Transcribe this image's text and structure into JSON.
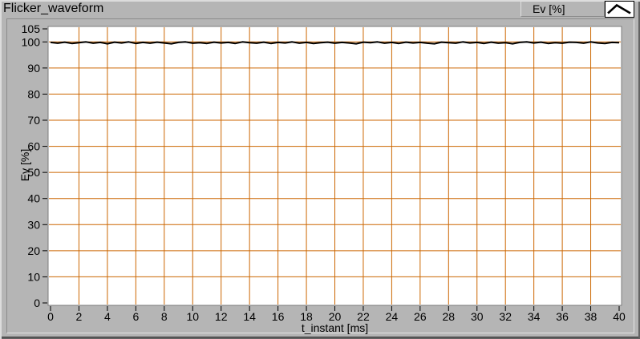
{
  "header": {
    "title": "Flicker_waveform"
  },
  "legend": {
    "label": "Ev [%]"
  },
  "colors": {
    "window_bg": "#b5b5b5",
    "plot_bg": "#ffffff",
    "grid": "#cc6600",
    "line": "#000000",
    "text": "#000000"
  },
  "chart_data": {
    "type": "line",
    "title": "Flicker_waveform",
    "xlabel": "t_instant [ms]",
    "ylabel": "Ev [%]",
    "xlim": [
      0,
      40
    ],
    "ylim": [
      0,
      105
    ],
    "x_ticks": [
      0,
      2,
      4,
      6,
      8,
      10,
      12,
      14,
      16,
      18,
      20,
      22,
      24,
      26,
      28,
      30,
      32,
      34,
      36,
      38,
      40
    ],
    "y_ticks": [
      0,
      10,
      20,
      30,
      40,
      50,
      60,
      70,
      80,
      90,
      100,
      105
    ],
    "grid": true,
    "grid_color": "#cc6600",
    "plot_bg": "#ffffff",
    "legend_position": "top-right",
    "legend_entries": [
      {
        "label": "Ev [%]",
        "line_color": "#000000"
      }
    ],
    "series": [
      {
        "name": "Ev [%]",
        "color": "#000000",
        "x_start": 0,
        "x_step": 0.5,
        "values": [
          99.8,
          99.5,
          99.9,
          99.4,
          99.7,
          100.0,
          99.5,
          99.8,
          99.3,
          99.9,
          99.6,
          100.0,
          99.4,
          99.8,
          99.5,
          99.9,
          99.6,
          99.3,
          99.8,
          100.0,
          99.5,
          99.7,
          99.4,
          99.9,
          99.6,
          99.8,
          99.4,
          100.0,
          99.7,
          99.5,
          99.9,
          99.4,
          99.8,
          99.6,
          100.0,
          99.5,
          99.8,
          99.4,
          99.7,
          99.9,
          99.5,
          99.8,
          99.6,
          99.3,
          99.9,
          99.7,
          100.0,
          99.5,
          99.8,
          99.4,
          99.9,
          99.6,
          99.8,
          99.5,
          99.3,
          99.9,
          99.7,
          99.5,
          100.0,
          99.6,
          99.8,
          99.4,
          99.9,
          99.5,
          99.7,
          99.3,
          99.8,
          100.0,
          99.6,
          99.9,
          99.4,
          99.7,
          99.5,
          99.9,
          99.8,
          99.5,
          100.0,
          99.6,
          99.4,
          99.8,
          99.7
        ]
      }
    ]
  }
}
